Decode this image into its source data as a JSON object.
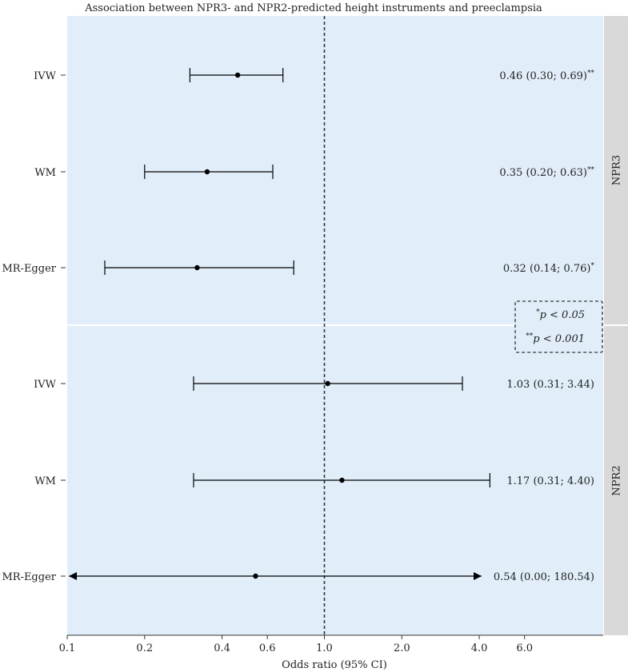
{
  "chart_data": {
    "type": "forest",
    "title": "Association between NPR3- and NPR2-predicted height instruments and preeclampsia",
    "xlabel": "Odds ratio (95% CI)",
    "x_scale": "log",
    "xlim": [
      0.1,
      10
    ],
    "x_ticks": [
      0.1,
      0.2,
      0.4,
      0.6,
      1.0,
      2.0,
      4.0,
      6.0
    ],
    "x_tick_labels": [
      "0.1",
      "0.2",
      "0.4",
      "0.6",
      "1.0",
      "2.0",
      "4.0",
      "6.0"
    ],
    "reference_line": 1.0,
    "panels": [
      {
        "name": "NPR3",
        "rows": [
          {
            "method": "IVW",
            "or": 0.46,
            "lower": 0.3,
            "upper": 0.69,
            "label": "0.46 (0.30; 0.69)",
            "sig": "**",
            "arrow_left": false,
            "arrow_right": false
          },
          {
            "method": "WM",
            "or": 0.35,
            "lower": 0.2,
            "upper": 0.63,
            "label": "0.35 (0.20; 0.63)",
            "sig": "**",
            "arrow_left": false,
            "arrow_right": false
          },
          {
            "method": "MR-Egger",
            "or": 0.32,
            "lower": 0.14,
            "upper": 0.76,
            "label": "0.32 (0.14; 0.76)",
            "sig": "*",
            "arrow_left": false,
            "arrow_right": false
          }
        ]
      },
      {
        "name": "NPR2",
        "rows": [
          {
            "method": "IVW",
            "or": 1.03,
            "lower": 0.31,
            "upper": 3.44,
            "label": "1.03 (0.31; 3.44)",
            "sig": "",
            "arrow_left": false,
            "arrow_right": false
          },
          {
            "method": "WM",
            "or": 1.17,
            "lower": 0.31,
            "upper": 4.4,
            "label": "1.17 (0.31; 4.40)",
            "sig": "",
            "arrow_left": false,
            "arrow_right": false
          },
          {
            "method": "MR-Egger",
            "or": 0.54,
            "lower": 0.0,
            "upper": 180.54,
            "label": "0.54 (0.00; 180.54)",
            "sig": "",
            "arrow_left": true,
            "arrow_right": true
          }
        ]
      }
    ],
    "legend": {
      "position": "middle-right",
      "items": [
        {
          "sig": "*",
          "text": "p < 0.05"
        },
        {
          "sig": "**",
          "text": "p < 0.001"
        }
      ]
    },
    "colors": {
      "panel_bg": "#e1eefa",
      "strip_bg": "#d9d9d9",
      "line": "#000000",
      "text": "#222222"
    }
  }
}
